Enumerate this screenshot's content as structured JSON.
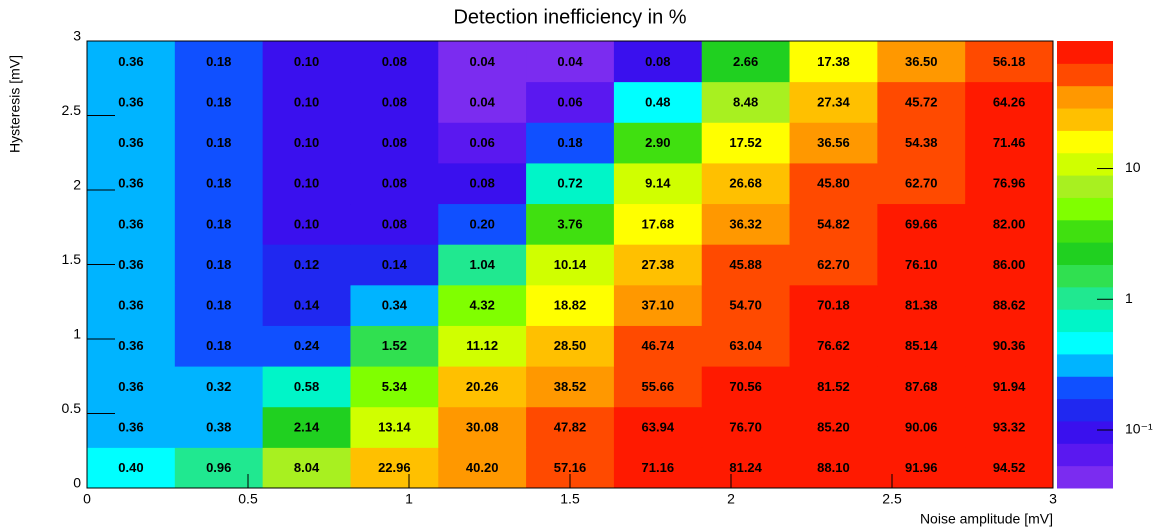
{
  "chart_data": {
    "type": "heatmap",
    "title": "Detection inefficiency in %",
    "x_label": "Noise amplitude [mV]",
    "y_label": "Hysteresis [mV]",
    "xlim": [
      0,
      3
    ],
    "ylim": [
      0,
      3
    ],
    "xticks": [
      0,
      0.5,
      1,
      1.5,
      2,
      2.5,
      3
    ],
    "yticks": [
      0,
      0.5,
      1,
      1.5,
      2,
      2.5,
      3
    ],
    "z": [
      [
        0.4,
        0.96,
        8.04,
        22.96,
        40.2,
        57.16,
        71.16,
        81.24,
        88.1,
        91.96,
        94.52
      ],
      [
        0.36,
        0.38,
        2.14,
        13.14,
        30.08,
        47.82,
        63.94,
        76.7,
        85.2,
        90.06,
        93.32
      ],
      [
        0.36,
        0.32,
        0.58,
        5.34,
        20.26,
        38.52,
        55.66,
        70.56,
        81.52,
        87.68,
        91.94
      ],
      [
        0.36,
        0.18,
        0.24,
        1.52,
        11.12,
        28.5,
        46.74,
        63.04,
        76.62,
        85.14,
        90.36
      ],
      [
        0.36,
        0.18,
        0.14,
        0.34,
        4.32,
        18.82,
        37.1,
        54.7,
        70.18,
        81.38,
        88.62
      ],
      [
        0.36,
        0.18,
        0.12,
        0.14,
        1.04,
        10.14,
        27.38,
        45.88,
        62.7,
        76.1,
        86.0
      ],
      [
        0.36,
        0.18,
        0.1,
        0.08,
        0.2,
        3.76,
        17.68,
        36.32,
        54.82,
        69.66,
        82.0
      ],
      [
        0.36,
        0.18,
        0.1,
        0.08,
        0.08,
        0.72,
        9.14,
        26.68,
        45.8,
        62.7,
        76.96
      ],
      [
        0.36,
        0.18,
        0.1,
        0.08,
        0.06,
        0.18,
        2.9,
        17.52,
        36.56,
        54.38,
        71.46
      ],
      [
        0.36,
        0.18,
        0.1,
        0.08,
        0.04,
        0.06,
        0.48,
        8.48,
        27.34,
        45.72,
        64.26
      ],
      [
        0.36,
        0.18,
        0.1,
        0.08,
        0.04,
        0.04,
        0.08,
        2.66,
        17.38,
        36.5,
        56.18
      ]
    ],
    "value_labels": [
      [
        "0.40",
        "0.96",
        "8.04",
        "22.96",
        "40.20",
        "57.16",
        "71.16",
        "81.24",
        "88.10",
        "91.96",
        "94.52"
      ],
      [
        "0.36",
        "0.38",
        "2.14",
        "13.14",
        "30.08",
        "47.82",
        "63.94",
        "76.70",
        "85.20",
        "90.06",
        "93.32"
      ],
      [
        "0.36",
        "0.32",
        "0.58",
        "5.34",
        "20.26",
        "38.52",
        "55.66",
        "70.56",
        "81.52",
        "87.68",
        "91.94"
      ],
      [
        "0.36",
        "0.18",
        "0.24",
        "1.52",
        "11.12",
        "28.50",
        "46.74",
        "63.04",
        "76.62",
        "85.14",
        "90.36"
      ],
      [
        "0.36",
        "0.18",
        "0.14",
        "0.34",
        "4.32",
        "18.82",
        "37.10",
        "54.70",
        "70.18",
        "81.38",
        "88.62"
      ],
      [
        "0.36",
        "0.18",
        "0.12",
        "0.14",
        "1.04",
        "10.14",
        "27.38",
        "45.88",
        "62.70",
        "76.10",
        "86.00"
      ],
      [
        "0.36",
        "0.18",
        "0.10",
        "0.08",
        "0.20",
        "3.76",
        "17.68",
        "36.32",
        "54.82",
        "69.66",
        "82.00"
      ],
      [
        "0.36",
        "0.18",
        "0.10",
        "0.08",
        "0.08",
        "0.72",
        "9.14",
        "26.68",
        "45.80",
        "62.70",
        "76.96"
      ],
      [
        "0.36",
        "0.18",
        "0.10",
        "0.08",
        "0.06",
        "0.18",
        "2.90",
        "17.52",
        "36.56",
        "54.38",
        "71.46"
      ],
      [
        "0.36",
        "0.18",
        "0.10",
        "0.08",
        "0.04",
        "0.06",
        "0.48",
        "8.48",
        "27.34",
        "45.72",
        "64.26"
      ],
      [
        "0.36",
        "0.18",
        "0.10",
        "0.08",
        "0.04",
        "0.04",
        "0.08",
        "2.66",
        "17.38",
        "36.50",
        "56.18"
      ]
    ],
    "zlim": [
      0.036,
      94.52
    ],
    "zlog": true,
    "zticks": [
      {
        "value": 0.1,
        "label": "10⁻¹"
      },
      1,
      10
    ],
    "palette": [
      "#7b2cf0",
      "#5a18f0",
      "#3a10ee",
      "#2028f0",
      "#1050ff",
      "#00b4ff",
      "#00ffff",
      "#00f5c8",
      "#20e890",
      "#30e050",
      "#20d020",
      "#40e010",
      "#80ff00",
      "#a8f020",
      "#d0ff00",
      "#ffff00",
      "#ffc000",
      "#ff9800",
      "#ff4a00",
      "#ff1a00"
    ]
  }
}
